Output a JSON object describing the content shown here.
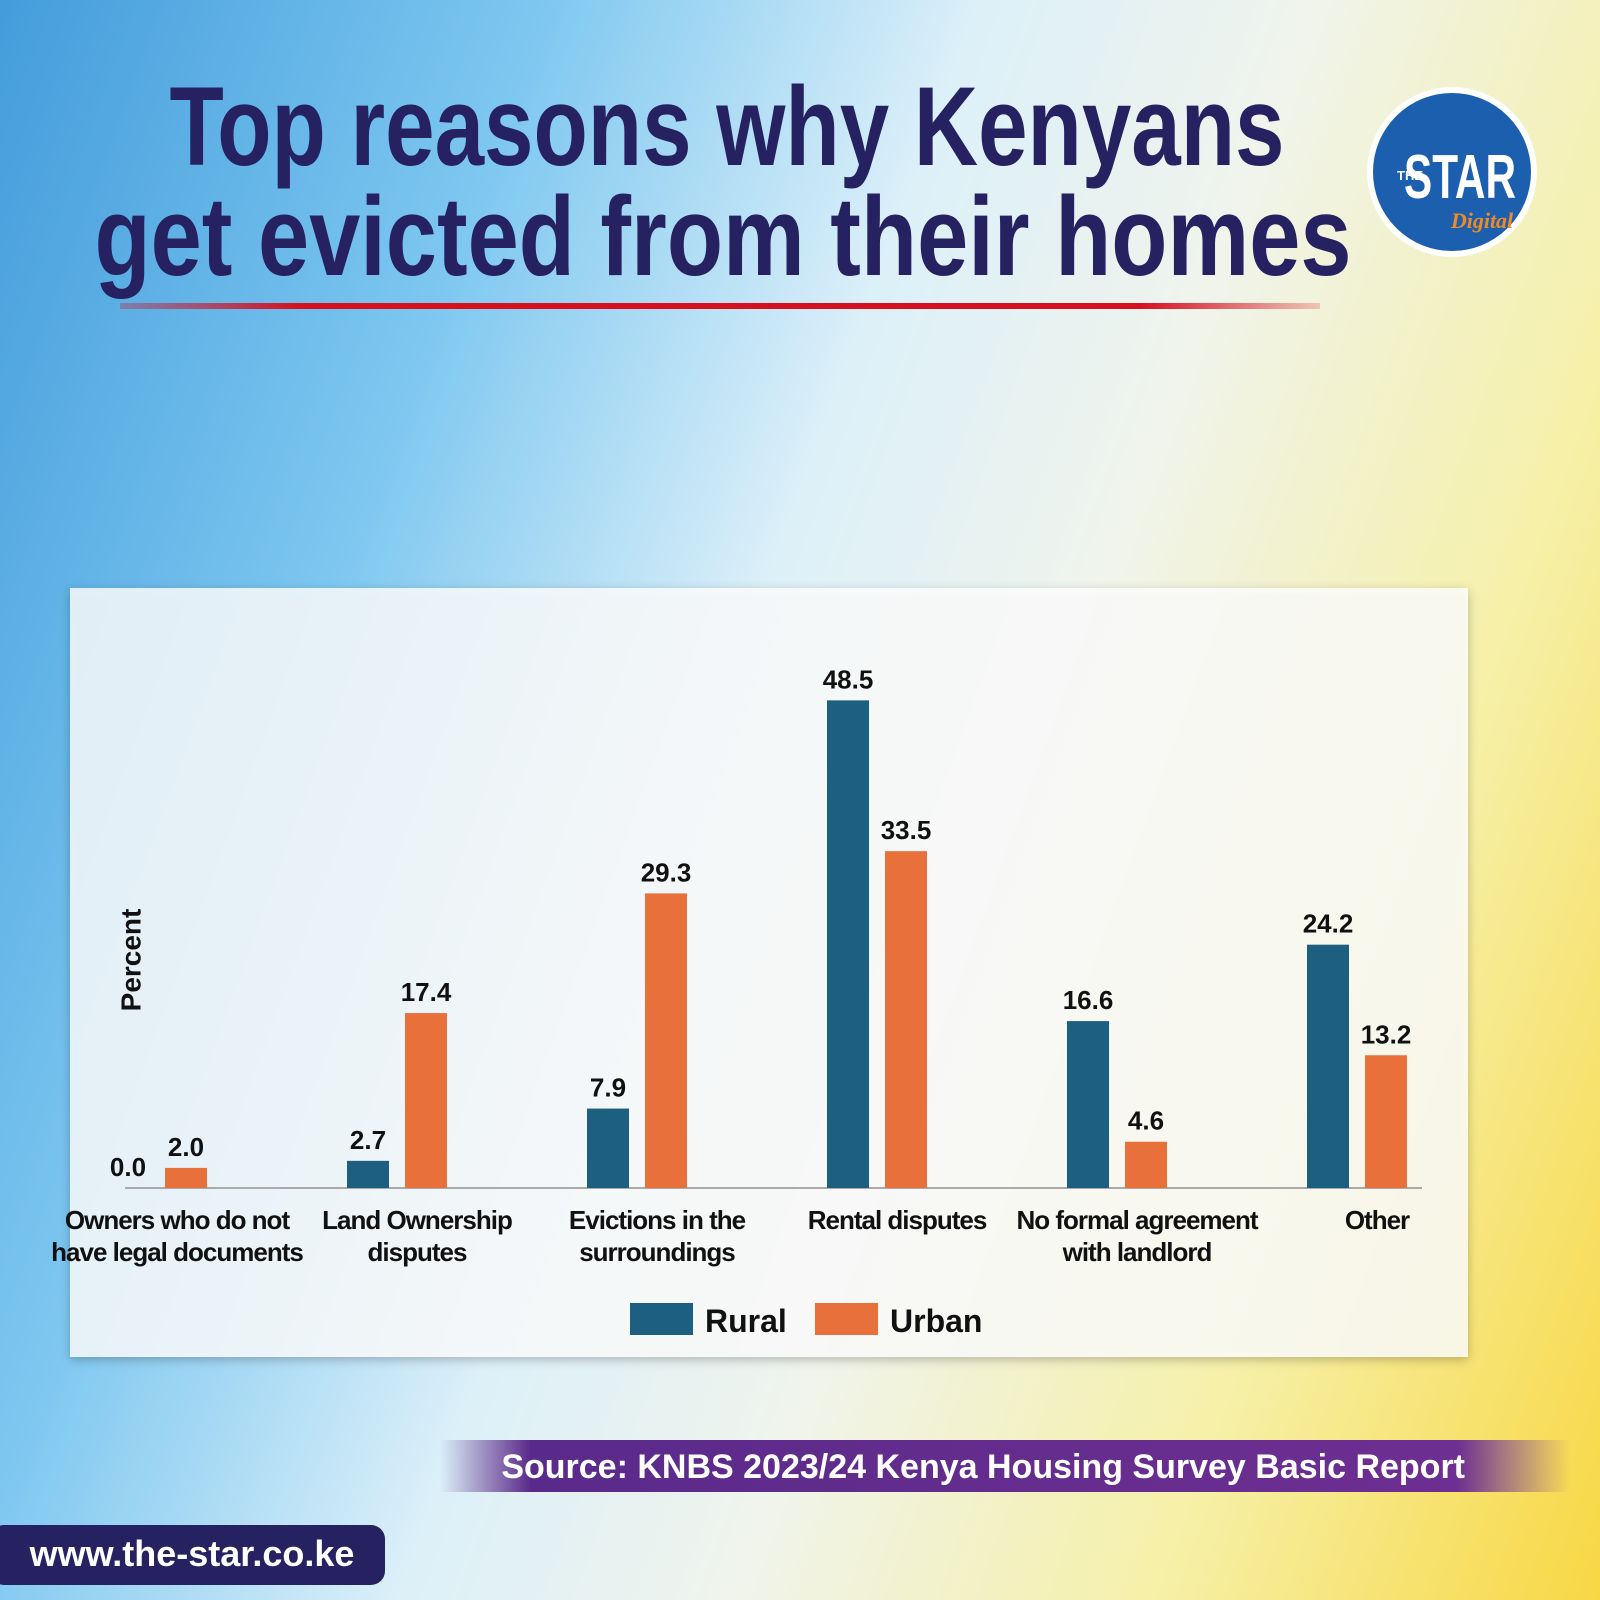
{
  "header": {
    "title": [
      "Top reasons why Kenyans",
      "get evicted from their homes"
    ],
    "logo": {
      "the": "THE",
      "star": "STAR",
      "digital": "Digital"
    }
  },
  "chart_data": {
    "type": "bar",
    "y_label": "Percent",
    "categories": [
      "Owners who do not have legal documents",
      "Land Ownership disputes",
      "Evictions in the surroundings",
      "Rental disputes",
      "No formal agreement with landlord",
      "Other"
    ],
    "series": [
      {
        "name": "Rural",
        "color": "#1d5f80",
        "values": [
          0.0,
          2.7,
          7.9,
          48.5,
          16.6,
          24.2
        ],
        "value_labels": [
          "0.0",
          "2.7",
          "7.9",
          "48.5",
          "16.6",
          "24.2"
        ]
      },
      {
        "name": "Urban",
        "color": "#e8703a",
        "values": [
          2.0,
          17.4,
          29.3,
          33.5,
          4.6,
          13.2
        ],
        "value_labels": [
          "2.0",
          "17.4",
          "29.3",
          "33.5",
          "4.6",
          "13.2"
        ]
      }
    ],
    "ylim": [
      0,
      55
    ],
    "legend": "bottom"
  },
  "footer": {
    "source": "Source: KNBS 2023/24 Kenya Housing Survey Basic Report",
    "website": "www.the-star.co.ke"
  }
}
